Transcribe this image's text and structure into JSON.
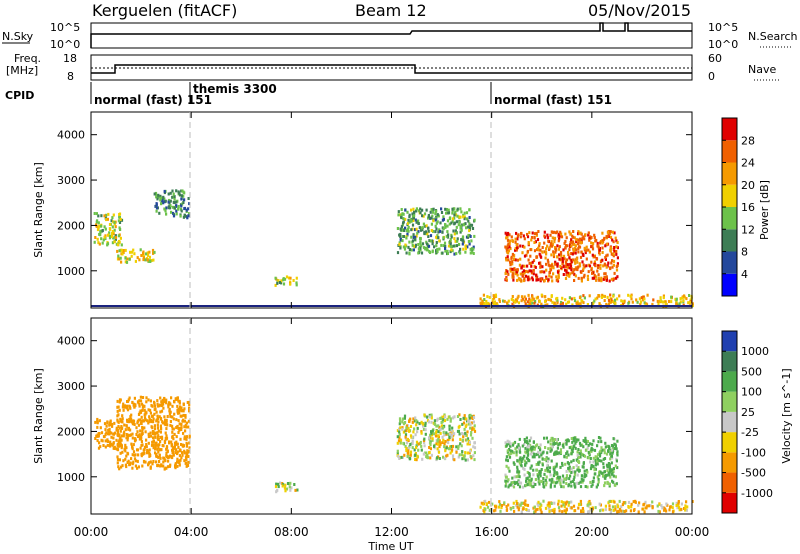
{
  "header": {
    "station": "Kerguelen (fitACF)",
    "beam": "Beam 12",
    "date": "05/Nov/2015"
  },
  "top_panels": {
    "nsky_label": "N.Sky",
    "nsearch_label": "N.Search",
    "nsky_ticks": [
      "10^5",
      "10^0"
    ],
    "nsearch_ticks": [
      "10^5",
      "10^0"
    ],
    "freq_label": "Freq.",
    "freq_unit": "[MHz]",
    "freq_ticks": [
      "18",
      "8"
    ],
    "nave_label": "Nave",
    "nave_ticks": [
      "60",
      "0"
    ],
    "cpid_label": "CPID",
    "cpid_segments": [
      {
        "label": "normal (fast) 151",
        "start_hour": 0.0
      },
      {
        "label": "themis 3300",
        "start_hour": 4.0
      },
      {
        "label": "normal (fast) 151",
        "start_hour": 16.0
      }
    ]
  },
  "chart_data": [
    {
      "type": "heatmap",
      "title": "Power",
      "ylabel": "Slant Range [km]",
      "xlabel": "Time UT",
      "x_range_hours": [
        0,
        24
      ],
      "xticks": [
        "00:00",
        "04:00",
        "08:00",
        "12:00",
        "16:00",
        "20:00",
        "00:00"
      ],
      "ylim": [
        180,
        4500
      ],
      "yticks": [
        1000,
        2000,
        3000,
        4000
      ],
      "colorbar": {
        "label": "Power [dB]",
        "ticks": [
          "4",
          "8",
          "12",
          "16",
          "20",
          "24",
          "28"
        ],
        "colors": [
          "#0000ff",
          "#24489c",
          "#3d7d55",
          "#6cc24a",
          "#f0d000",
          "#f59a00",
          "#f06000",
          "#e00000"
        ]
      },
      "echo_regions": [
        {
          "start_hour": 0.1,
          "end_hour": 1.2,
          "range_km": [
            1600,
            2300
          ],
          "power_db": 16
        },
        {
          "start_hour": 1.0,
          "end_hour": 2.5,
          "range_km": [
            1200,
            1500
          ],
          "power_db": 18
        },
        {
          "start_hour": 2.5,
          "end_hour": 3.9,
          "range_km": [
            2200,
            2800
          ],
          "power_db": 10
        },
        {
          "start_hour": 7.3,
          "end_hour": 8.2,
          "range_km": [
            700,
            900
          ],
          "power_db": 16
        },
        {
          "start_hour": 12.2,
          "end_hour": 15.3,
          "range_km": [
            1400,
            2400
          ],
          "power_db": 12
        },
        {
          "start_hour": 16.5,
          "end_hour": 21.0,
          "range_km": [
            800,
            1900
          ],
          "power_db": 26
        },
        {
          "start_hour": 15.5,
          "end_hour": 24.0,
          "range_km": [
            250,
            500
          ],
          "power_db": 20
        }
      ]
    },
    {
      "type": "heatmap",
      "title": "Velocity",
      "ylabel": "Slant Range [km]",
      "xlabel": "Time UT",
      "x_range_hours": [
        0,
        24
      ],
      "xticks": [
        "00:00",
        "04:00",
        "08:00",
        "12:00",
        "16:00",
        "20:00",
        "00:00"
      ],
      "ylim": [
        180,
        4500
      ],
      "yticks": [
        1000,
        2000,
        3000,
        4000
      ],
      "colorbar": {
        "label": "Velocity [m s^-1]",
        "ticks": [
          "1000",
          "500",
          "100",
          "25",
          "-25",
          "-100",
          "-500",
          "-1000"
        ],
        "colors": [
          "#2040b0",
          "#3d7d55",
          "#4caa4c",
          "#8fd060",
          "#c8c8c8",
          "#f0d000",
          "#f59a00",
          "#f06000",
          "#e00000"
        ]
      },
      "echo_regions": [
        {
          "start_hour": 0.1,
          "end_hour": 1.2,
          "range_km": [
            1600,
            2300
          ],
          "velocity_ms": -250
        },
        {
          "start_hour": 1.0,
          "end_hour": 3.9,
          "range_km": [
            1200,
            2800
          ],
          "velocity_ms": -300
        },
        {
          "start_hour": 7.3,
          "end_hour": 8.2,
          "range_km": [
            700,
            900
          ],
          "velocity_ms": 0
        },
        {
          "start_hour": 12.2,
          "end_hour": 15.3,
          "range_km": [
            1400,
            2400
          ],
          "velocity_ms": 0
        },
        {
          "start_hour": 16.5,
          "end_hour": 21.0,
          "range_km": [
            800,
            1900
          ],
          "velocity_ms": 150
        },
        {
          "start_hour": 15.5,
          "end_hour": 24.0,
          "range_km": [
            250,
            500
          ],
          "velocity_ms": -80
        }
      ]
    }
  ]
}
